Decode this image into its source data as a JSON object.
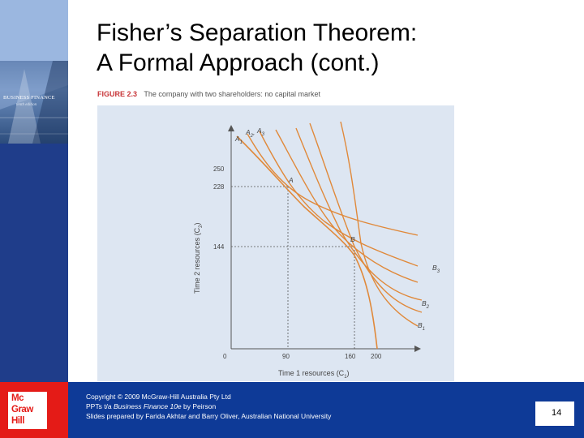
{
  "slide": {
    "title_line1": "Fisher’s Separation Theorem:",
    "title_line2": "A Formal Approach (cont.)",
    "page_number": "14"
  },
  "sidebar": {
    "cover_title": "BUSINESS FINANCE",
    "cover_subtitle": "tenth edition",
    "logo_lines": [
      "Mc",
      "Graw",
      "Hill"
    ]
  },
  "figure": {
    "label": "FIGURE 2.3",
    "caption": "The company with two shareholders: no capital market",
    "x_axis_label": "Time 1 resources (C",
    "x_axis_sub": "1",
    "y_axis_label": "Time 2 resources (C",
    "y_axis_sub": "2",
    "x_ticks": [
      "0",
      "90",
      "160",
      "200"
    ],
    "y_ticks": [
      "250",
      "228",
      "144"
    ],
    "point_labels": {
      "A": "A",
      "B": "B",
      "A1": "A",
      "A1_sub": "1",
      "A2": "A",
      "A2_sub": "2",
      "A3": "A",
      "A3_sub": "3",
      "B1": "B",
      "B1_sub": "1",
      "B2": "B",
      "B2_sub": "2",
      "B3": "B",
      "B3_sub": "3"
    },
    "colors": {
      "curve": "#e0893a",
      "axis": "#555555",
      "background": "#dde6f2"
    }
  },
  "footer": {
    "line1": "Copyright © 2009 McGraw-Hill Australia Pty Ltd",
    "line2_prefix": "PPTs t/a ",
    "line2_italic": "Business Finance 10e",
    "line2_suffix": " by Peirson",
    "line3": "Slides prepared by Farida Akhtar and Barry Oliver, Australian National University"
  }
}
